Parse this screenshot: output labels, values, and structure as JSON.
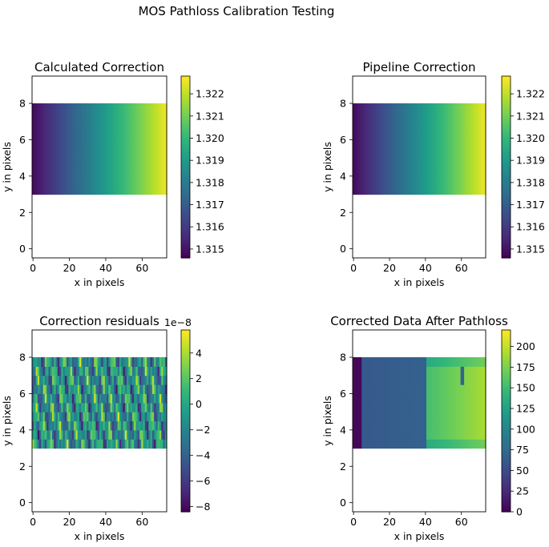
{
  "suptitle": "MOS Pathloss Calibration Testing",
  "colors": {
    "viridis": [
      "#440154",
      "#482878",
      "#3e4989",
      "#31688e",
      "#26828e",
      "#1f9e89",
      "#35b779",
      "#6ece58",
      "#b5de2b",
      "#fde725"
    ],
    "axis": "#000000",
    "background": "#ffffff"
  },
  "chart_data": [
    {
      "type": "heatmap",
      "title": "Calculated Correction",
      "xlabel": "x in pixels",
      "ylabel": "y in pixels",
      "xlim": [
        -0.5,
        73.5
      ],
      "ylim": [
        -0.5,
        9.5
      ],
      "xticks": [
        0,
        20,
        40,
        60
      ],
      "yticks": [
        0,
        2,
        4,
        6,
        8
      ],
      "data_extent": {
        "x": [
          -0.5,
          73.5
        ],
        "y": [
          3,
          8
        ]
      },
      "pattern": "horizontal-gradient",
      "colorbar": {
        "min": 1.3146,
        "max": 1.3228,
        "ticks": [
          "1.315",
          "1.316",
          "1.317",
          "1.318",
          "1.319",
          "1.320",
          "1.321",
          "1.322"
        ],
        "tick_values": [
          1.315,
          1.316,
          1.317,
          1.318,
          1.319,
          1.32,
          1.321,
          1.322
        ],
        "offset": ""
      }
    },
    {
      "type": "heatmap",
      "title": "Pipeline Correction",
      "xlabel": "x in pixels",
      "ylabel": "y in pixels",
      "xlim": [
        -0.5,
        73.5
      ],
      "ylim": [
        -0.5,
        9.5
      ],
      "xticks": [
        0,
        20,
        40,
        60
      ],
      "yticks": [
        0,
        2,
        4,
        6,
        8
      ],
      "data_extent": {
        "x": [
          -0.5,
          73.5
        ],
        "y": [
          3,
          8
        ]
      },
      "pattern": "horizontal-gradient",
      "colorbar": {
        "min": 1.3146,
        "max": 1.3228,
        "ticks": [
          "1.315",
          "1.316",
          "1.317",
          "1.318",
          "1.319",
          "1.320",
          "1.321",
          "1.322"
        ],
        "tick_values": [
          1.315,
          1.316,
          1.317,
          1.318,
          1.319,
          1.32,
          1.321,
          1.322
        ],
        "offset": ""
      }
    },
    {
      "type": "heatmap",
      "title": "Correction residuals",
      "xlabel": "x in pixels",
      "ylabel": "y in pixels",
      "xlim": [
        -0.5,
        73.5
      ],
      "ylim": [
        -0.5,
        9.5
      ],
      "xticks": [
        0,
        20,
        40,
        60
      ],
      "yticks": [
        0,
        2,
        4,
        6,
        8
      ],
      "data_extent": {
        "x": [
          -0.5,
          73.5
        ],
        "y": [
          3,
          8
        ]
      },
      "pattern": "oscillating-residuals",
      "colorbar": {
        "min": -8.4,
        "max": 5.8,
        "ticks": [
          "−8",
          "−6",
          "−4",
          "−2",
          "0",
          "2",
          "4"
        ],
        "tick_values": [
          -8,
          -6,
          -4,
          -2,
          0,
          2,
          4
        ],
        "offset": "1e−8"
      }
    },
    {
      "type": "heatmap",
      "title": "Corrected Data After Pathloss",
      "xlabel": "x in pixels",
      "ylabel": "y in pixels",
      "xlim": [
        -0.5,
        73.5
      ],
      "ylim": [
        -0.5,
        9.5
      ],
      "xticks": [
        0,
        20,
        40,
        60
      ],
      "yticks": [
        0,
        2,
        4,
        6,
        8
      ],
      "data_extent": {
        "x": [
          -0.5,
          73.5
        ],
        "y": [
          3,
          8
        ]
      },
      "pattern": "corrected-data",
      "colorbar": {
        "min": 0,
        "max": 220,
        "ticks": [
          "0",
          "25",
          "50",
          "75",
          "100",
          "125",
          "150",
          "175",
          "200"
        ],
        "tick_values": [
          0,
          25,
          50,
          75,
          100,
          125,
          150,
          175,
          200
        ],
        "offset": ""
      }
    }
  ]
}
